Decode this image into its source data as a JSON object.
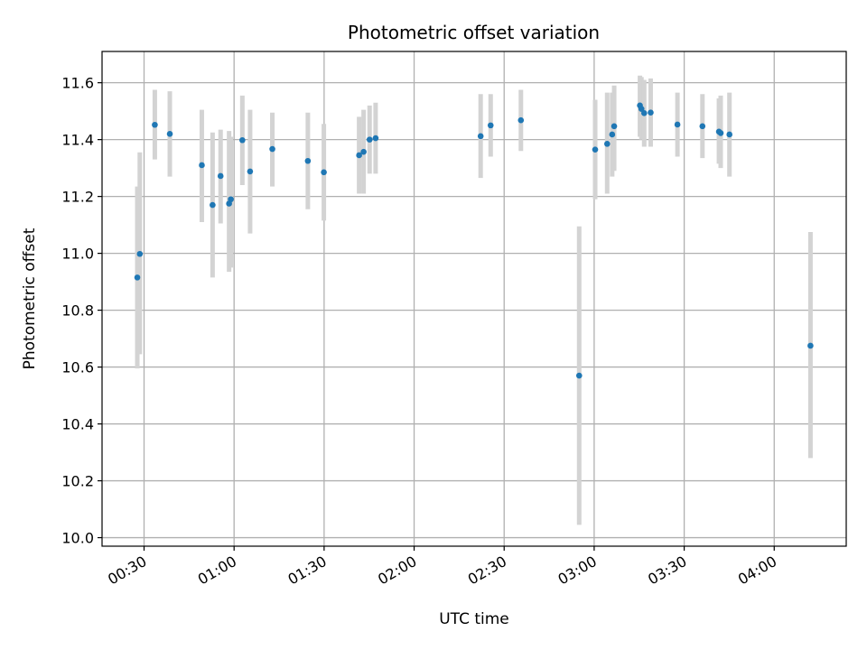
{
  "chart_data": {
    "type": "scatter",
    "title": "Photometric offset variation",
    "xlabel": "UTC time",
    "ylabel": "Photometric offset",
    "x_unit": "UTC time (HH:MM)",
    "xlim": [
      "00:16",
      "04:24"
    ],
    "ylim": [
      9.97,
      11.71
    ],
    "xticks": [
      "00:30",
      "01:00",
      "01:30",
      "02:00",
      "02:30",
      "03:00",
      "03:30",
      "04:00"
    ],
    "yticks": [
      10.0,
      10.2,
      10.4,
      10.6,
      10.8,
      11.0,
      11.2,
      11.4,
      11.6
    ],
    "grid": true,
    "point_color": "#1f77b4",
    "errorbar_color": "#d3d3d3",
    "series": [
      {
        "points": [
          {
            "x": "00:27:45",
            "y": 10.915,
            "lo": 10.595,
            "hi": 11.235
          },
          {
            "x": "00:28:35",
            "y": 10.998,
            "lo": 10.645,
            "hi": 11.355
          },
          {
            "x": "00:33:35",
            "y": 11.452,
            "lo": 11.33,
            "hi": 11.575
          },
          {
            "x": "00:38:35",
            "y": 11.42,
            "lo": 11.27,
            "hi": 11.57
          },
          {
            "x": "00:49:15",
            "y": 11.31,
            "lo": 11.11,
            "hi": 11.505
          },
          {
            "x": "00:52:50",
            "y": 11.17,
            "lo": 10.915,
            "hi": 11.425
          },
          {
            "x": "00:55:30",
            "y": 11.272,
            "lo": 11.105,
            "hi": 11.435
          },
          {
            "x": "00:58:20",
            "y": 11.175,
            "lo": 10.935,
            "hi": 11.43
          },
          {
            "x": "00:58:55",
            "y": 11.19,
            "lo": 10.95,
            "hi": 11.41
          },
          {
            "x": "01:02:45",
            "y": 11.398,
            "lo": 11.24,
            "hi": 11.555
          },
          {
            "x": "01:05:20",
            "y": 11.288,
            "lo": 11.07,
            "hi": 11.505
          },
          {
            "x": "01:12:45",
            "y": 11.367,
            "lo": 11.235,
            "hi": 11.495
          },
          {
            "x": "01:24:35",
            "y": 11.325,
            "lo": 11.155,
            "hi": 11.495
          },
          {
            "x": "01:29:55",
            "y": 11.285,
            "lo": 11.115,
            "hi": 11.455
          },
          {
            "x": "01:41:40",
            "y": 11.345,
            "lo": 11.21,
            "hi": 11.48
          },
          {
            "x": "01:43:10",
            "y": 11.357,
            "lo": 11.21,
            "hi": 11.505
          },
          {
            "x": "01:45:10",
            "y": 11.4,
            "lo": 11.28,
            "hi": 11.52
          },
          {
            "x": "01:47:10",
            "y": 11.405,
            "lo": 11.28,
            "hi": 11.53
          },
          {
            "x": "02:22:10",
            "y": 11.412,
            "lo": 11.265,
            "hi": 11.56
          },
          {
            "x": "02:25:30",
            "y": 11.45,
            "lo": 11.34,
            "hi": 11.56
          },
          {
            "x": "02:35:35",
            "y": 11.468,
            "lo": 11.36,
            "hi": 11.575
          },
          {
            "x": "02:55:00",
            "y": 10.57,
            "lo": 10.045,
            "hi": 11.095
          },
          {
            "x": "03:00:20",
            "y": 11.365,
            "lo": 11.19,
            "hi": 11.54
          },
          {
            "x": "03:04:20",
            "y": 11.385,
            "lo": 11.21,
            "hi": 11.565
          },
          {
            "x": "03:06:00",
            "y": 11.418,
            "lo": 11.27,
            "hi": 11.565
          },
          {
            "x": "03:06:40",
            "y": 11.447,
            "lo": 11.29,
            "hi": 11.59
          },
          {
            "x": "03:15:15",
            "y": 11.52,
            "lo": 11.41,
            "hi": 11.625
          },
          {
            "x": "03:15:45",
            "y": 11.508,
            "lo": 11.4,
            "hi": 11.62
          },
          {
            "x": "03:16:40",
            "y": 11.493,
            "lo": 11.375,
            "hi": 11.61
          },
          {
            "x": "03:18:50",
            "y": 11.495,
            "lo": 11.375,
            "hi": 11.615
          },
          {
            "x": "03:27:45",
            "y": 11.453,
            "lo": 11.34,
            "hi": 11.565
          },
          {
            "x": "03:36:05",
            "y": 11.447,
            "lo": 11.335,
            "hi": 11.56
          },
          {
            "x": "03:41:35",
            "y": 11.428,
            "lo": 11.315,
            "hi": 11.545
          },
          {
            "x": "03:42:10",
            "y": 11.423,
            "lo": 11.3,
            "hi": 11.555
          },
          {
            "x": "03:45:05",
            "y": 11.418,
            "lo": 11.27,
            "hi": 11.565
          },
          {
            "x": "04:12:05",
            "y": 10.675,
            "lo": 10.28,
            "hi": 11.075
          }
        ]
      }
    ]
  }
}
